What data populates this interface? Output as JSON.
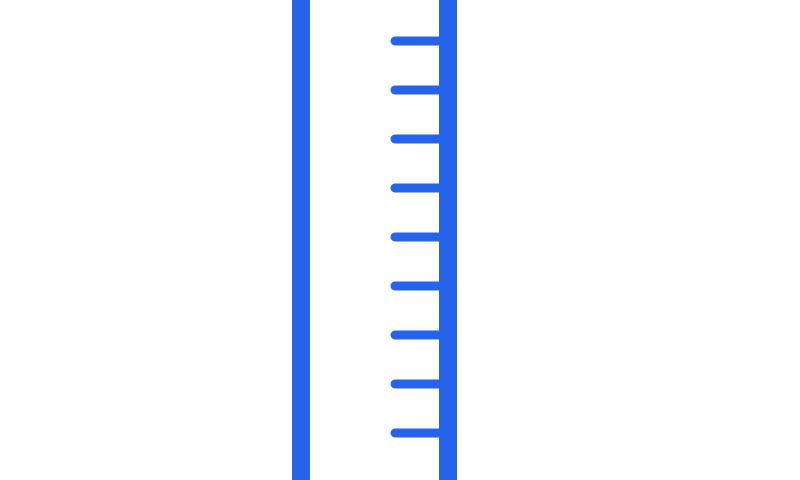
{
  "colors": {
    "background": "#ffffff",
    "accent": "#2563eb"
  },
  "graphic": {
    "icon": "ruler-icon",
    "tick_count": 9
  }
}
